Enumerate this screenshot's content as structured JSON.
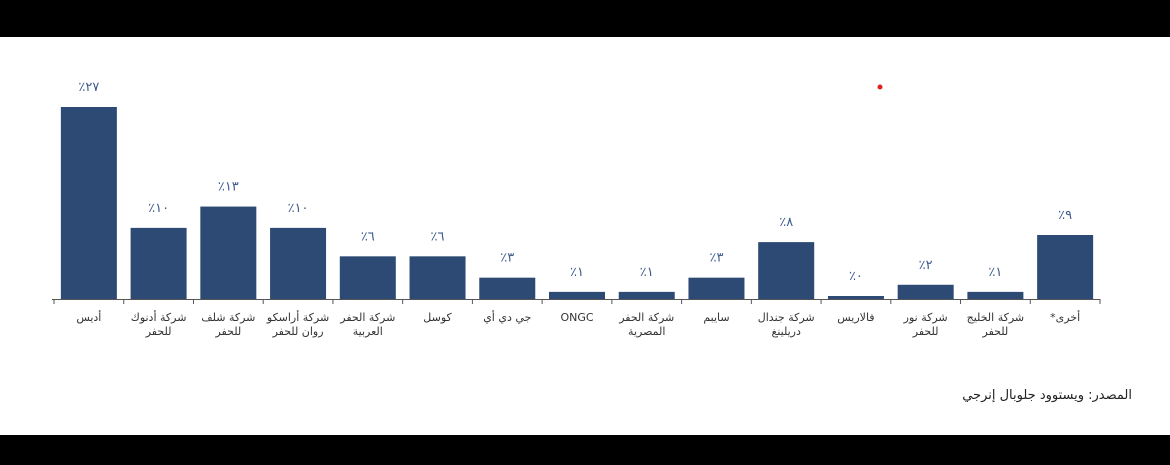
{
  "chart_data": {
    "type": "bar",
    "categories": [
      "أديس",
      "شركة أدنوك للحفر",
      "شركة شلف للحفر",
      "شركة أراسكو روان للحفر",
      "شركة الحفر العربية",
      "كوسل",
      "جي دي أي",
      "ONGC",
      "شركة الحفر المصرية",
      "سايبم",
      "شركة جندال دريلينغ",
      "فالاريس",
      "شركة نور للحفر",
      "شركة الخليج للحفر",
      "أخرى*"
    ],
    "values": [
      27,
      10,
      13,
      10,
      6,
      6,
      3,
      1,
      1,
      3,
      8,
      0,
      2,
      1,
      9
    ],
    "value_labels": [
      "٪٢٧",
      "٪١٠",
      "٪١٣",
      "٪١٠",
      "٪٦",
      "٪٦",
      "٪٣",
      "٪١",
      "٪١",
      "٪٣",
      "٪٨",
      "٪٠",
      "٪٢",
      "٪١",
      "٪٩"
    ],
    "color": "#2c4a73",
    "source": "المصدر: ويستوود جلوبال إنرجي"
  }
}
